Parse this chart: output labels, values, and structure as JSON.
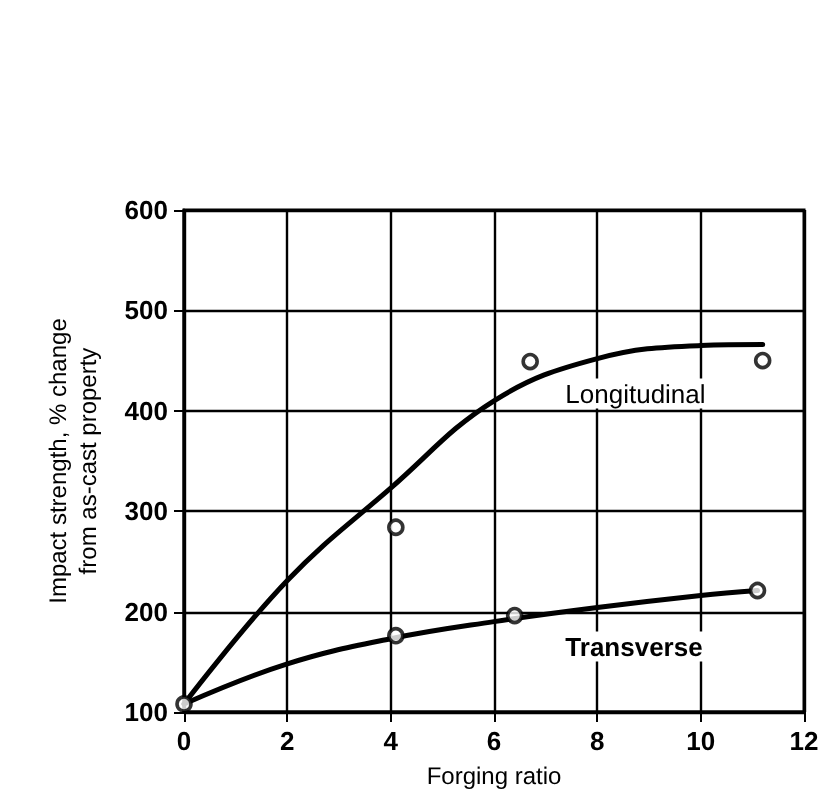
{
  "chart_data": {
    "type": "line",
    "xlabel": "Forging ratio",
    "ylabel": "Impact strength, % change\nfrom as-cast property",
    "xlim": [
      0,
      12
    ],
    "xticks": [
      0,
      2,
      4,
      6,
      8,
      10,
      12
    ],
    "ylim": [
      100,
      600
    ],
    "yticks": [
      100,
      200,
      300,
      400,
      500,
      600
    ],
    "grid": true,
    "legend": false,
    "series": [
      {
        "name": "Longitudinal",
        "color": "#000000",
        "marker": "none",
        "x": [
          0,
          2,
          4,
          6,
          8,
          10,
          11.2
        ],
        "values": [
          108,
          231,
          323,
          410,
          452,
          465,
          466
        ]
      },
      {
        "name": "Transverse",
        "color": "#000000",
        "marker": "none",
        "x": [
          0,
          2,
          4,
          6,
          8,
          10,
          11.1
        ],
        "values": [
          108,
          148,
          173,
          190,
          204,
          216,
          221
        ]
      },
      {
        "type": "scatter",
        "color": "#000000",
        "marker": "circle",
        "x": [
          0,
          4.1,
          6.7,
          11.2
        ],
        "values": [
          108,
          284,
          449,
          450
        ]
      },
      {
        "type": "scatter",
        "color": "#000000",
        "marker": "circle",
        "x": [
          4.1,
          6.4,
          11.1
        ],
        "values": [
          176,
          196,
          221
        ]
      }
    ]
  }
}
